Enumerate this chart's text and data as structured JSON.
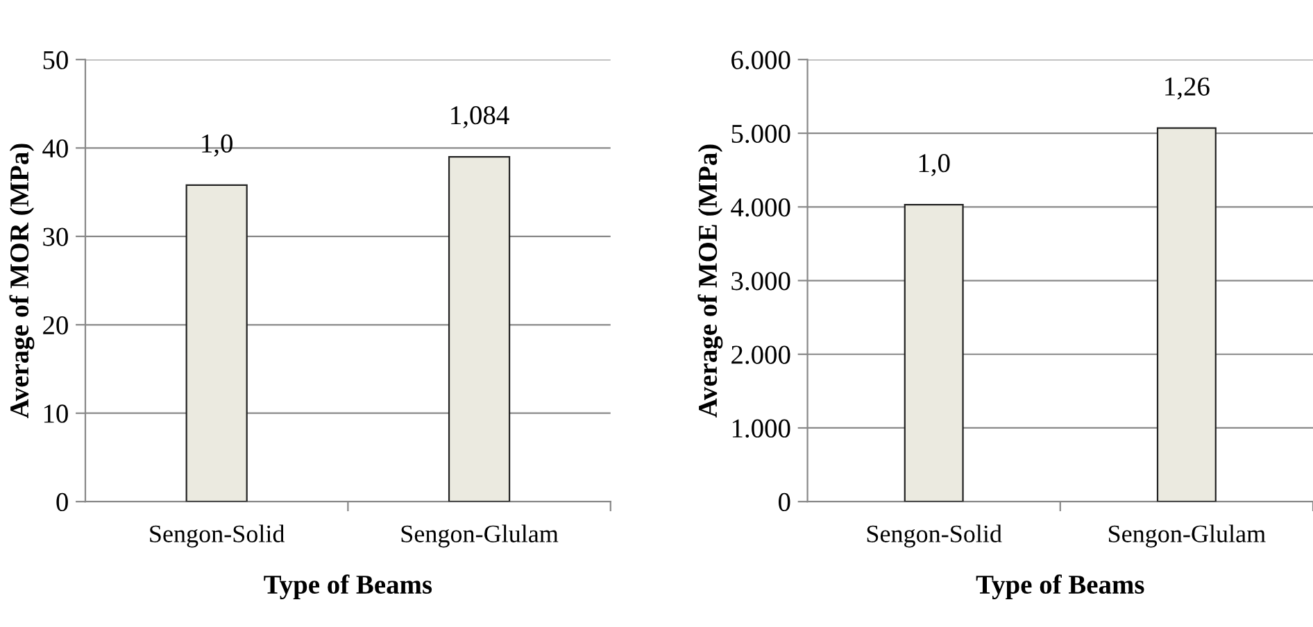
{
  "chart_data": [
    {
      "type": "bar",
      "categories": [
        "Sengon-Solid",
        "Sengon-Glulam"
      ],
      "values": [
        35.8,
        39.0
      ],
      "color": "#ebeae0",
      "xlabel": "Type of Beams",
      "ylabel": "Average of MOR (MPa)",
      "ylim": [
        0,
        50
      ],
      "yticks": [
        0,
        10,
        20,
        30,
        40,
        50
      ],
      "grid": "y",
      "annotations": [
        {
          "text": "1,0",
          "x": "Sengon-Solid",
          "y": 35.8
        },
        {
          "text": "1,084",
          "x": "Sengon-Glulam",
          "y": 39.0
        }
      ]
    },
    {
      "type": "bar",
      "categories": [
        "Sengon-Solid",
        "Sengon-Glulam"
      ],
      "values": [
        4030,
        5070
      ],
      "color": "#ebeae0",
      "xlabel": "Type of Beams",
      "ylabel": "Average of MOE (MPa)",
      "ylim": [
        0,
        6000
      ],
      "yticks": [
        {
          "value": 0,
          "label": "0"
        },
        {
          "value": 1000,
          "label": "1.000"
        },
        {
          "value": 2000,
          "label": "2.000"
        },
        {
          "value": 3000,
          "label": "3.000"
        },
        {
          "value": 4000,
          "label": "4.000"
        },
        {
          "value": 5000,
          "label": "5.000"
        },
        {
          "value": 6000,
          "label": "6.000"
        }
      ],
      "grid": "y",
      "annotations": [
        {
          "text": "1,0",
          "x": "Sengon-Solid",
          "y": 4030
        },
        {
          "text": "1,26",
          "x": "Sengon-Glulam",
          "y": 5070
        }
      ]
    }
  ]
}
